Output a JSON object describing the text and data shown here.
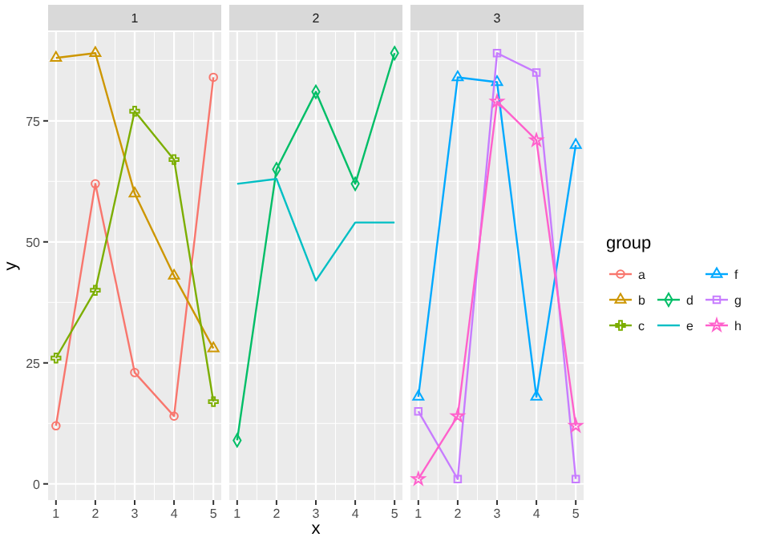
{
  "chart_data": [
    {
      "type": "line",
      "title": "1",
      "ylabel": "y",
      "legend": "right",
      "x": [
        1,
        2,
        3,
        4,
        5
      ],
      "xlim": [
        0.8,
        5.2
      ],
      "xticks": [
        1,
        2,
        3,
        4,
        5
      ],
      "ylim": [
        -3.35,
        93.35
      ],
      "yticks": [
        0,
        25,
        50,
        75
      ],
      "grid": true,
      "series": [
        {
          "name": "a",
          "color": "#F8766D",
          "marker": "circle",
          "values": [
            12,
            62,
            23,
            14,
            84
          ]
        },
        {
          "name": "b",
          "color": "#CD9600",
          "marker": "triangle",
          "values": [
            88,
            89,
            60,
            43,
            28
          ]
        },
        {
          "name": "c",
          "color": "#7CAE00",
          "marker": "cross",
          "values": [
            26,
            40,
            77,
            67,
            17
          ]
        }
      ]
    },
    {
      "type": "line",
      "title": "2",
      "xlabel": "x",
      "legend": "right",
      "x": [
        1,
        2,
        3,
        4,
        5
      ],
      "xlim": [
        0.8,
        5.2
      ],
      "xticks": [
        1,
        2,
        3,
        4,
        5
      ],
      "ylim": [
        -3.35,
        93.35
      ],
      "yticks": [
        0,
        25,
        50,
        75
      ],
      "grid": true,
      "tick_labels": "x",
      "series": [
        {
          "name": "d",
          "color": "#00BE67",
          "marker": "diamond",
          "values": [
            9,
            65,
            81,
            62,
            89
          ]
        },
        {
          "name": "e",
          "color": "#00BFC4",
          "marker": "none",
          "values": [
            62,
            63,
            42,
            54,
            54
          ]
        }
      ]
    },
    {
      "type": "line",
      "title": "3",
      "legend_title": "group",
      "legend": "right",
      "x": [
        1,
        2,
        3,
        4,
        5
      ],
      "xlim": [
        0.8,
        5.2
      ],
      "xticks": [
        1,
        2,
        3,
        4,
        5
      ],
      "ylim": [
        -3.35,
        93.35
      ],
      "yticks": [
        0,
        25,
        50,
        75
      ],
      "grid": true,
      "tick_labels": "x",
      "series": [
        {
          "name": "f",
          "color": "#00A9FF",
          "marker": "triangle",
          "values": [
            18,
            84,
            83,
            18,
            70
          ]
        },
        {
          "name": "g",
          "color": "#C77CFF",
          "marker": "square",
          "values": [
            15,
            1,
            89,
            85,
            1
          ]
        },
        {
          "name": "h",
          "color": "#FF61CC",
          "marker": "star",
          "values": [
            1,
            14,
            79,
            71,
            12
          ]
        }
      ]
    }
  ]
}
